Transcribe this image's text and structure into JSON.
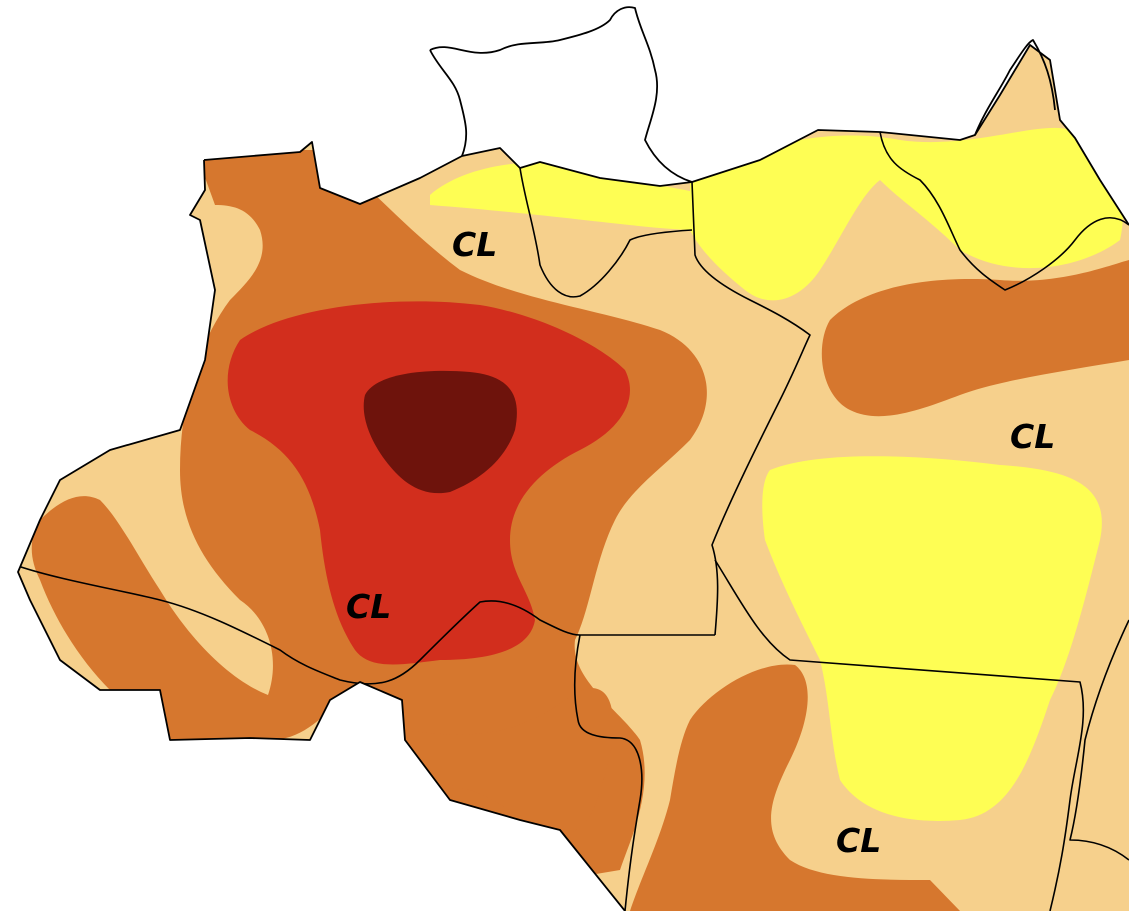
{
  "map": {
    "labels": [
      {
        "id": "cl-north",
        "text": "CL"
      },
      {
        "id": "cl-east",
        "text": "CL"
      },
      {
        "id": "cl-west",
        "text": "CL"
      },
      {
        "id": "cl-south",
        "text": "CL"
      }
    ],
    "colors": {
      "background": "#ffffff",
      "light_tan": "#f6d08c",
      "yellow": "#fefe54",
      "orange": "#d6772e",
      "red": "#d22e1d",
      "dark_brown": "#6e130c",
      "border": "#000000"
    }
  }
}
